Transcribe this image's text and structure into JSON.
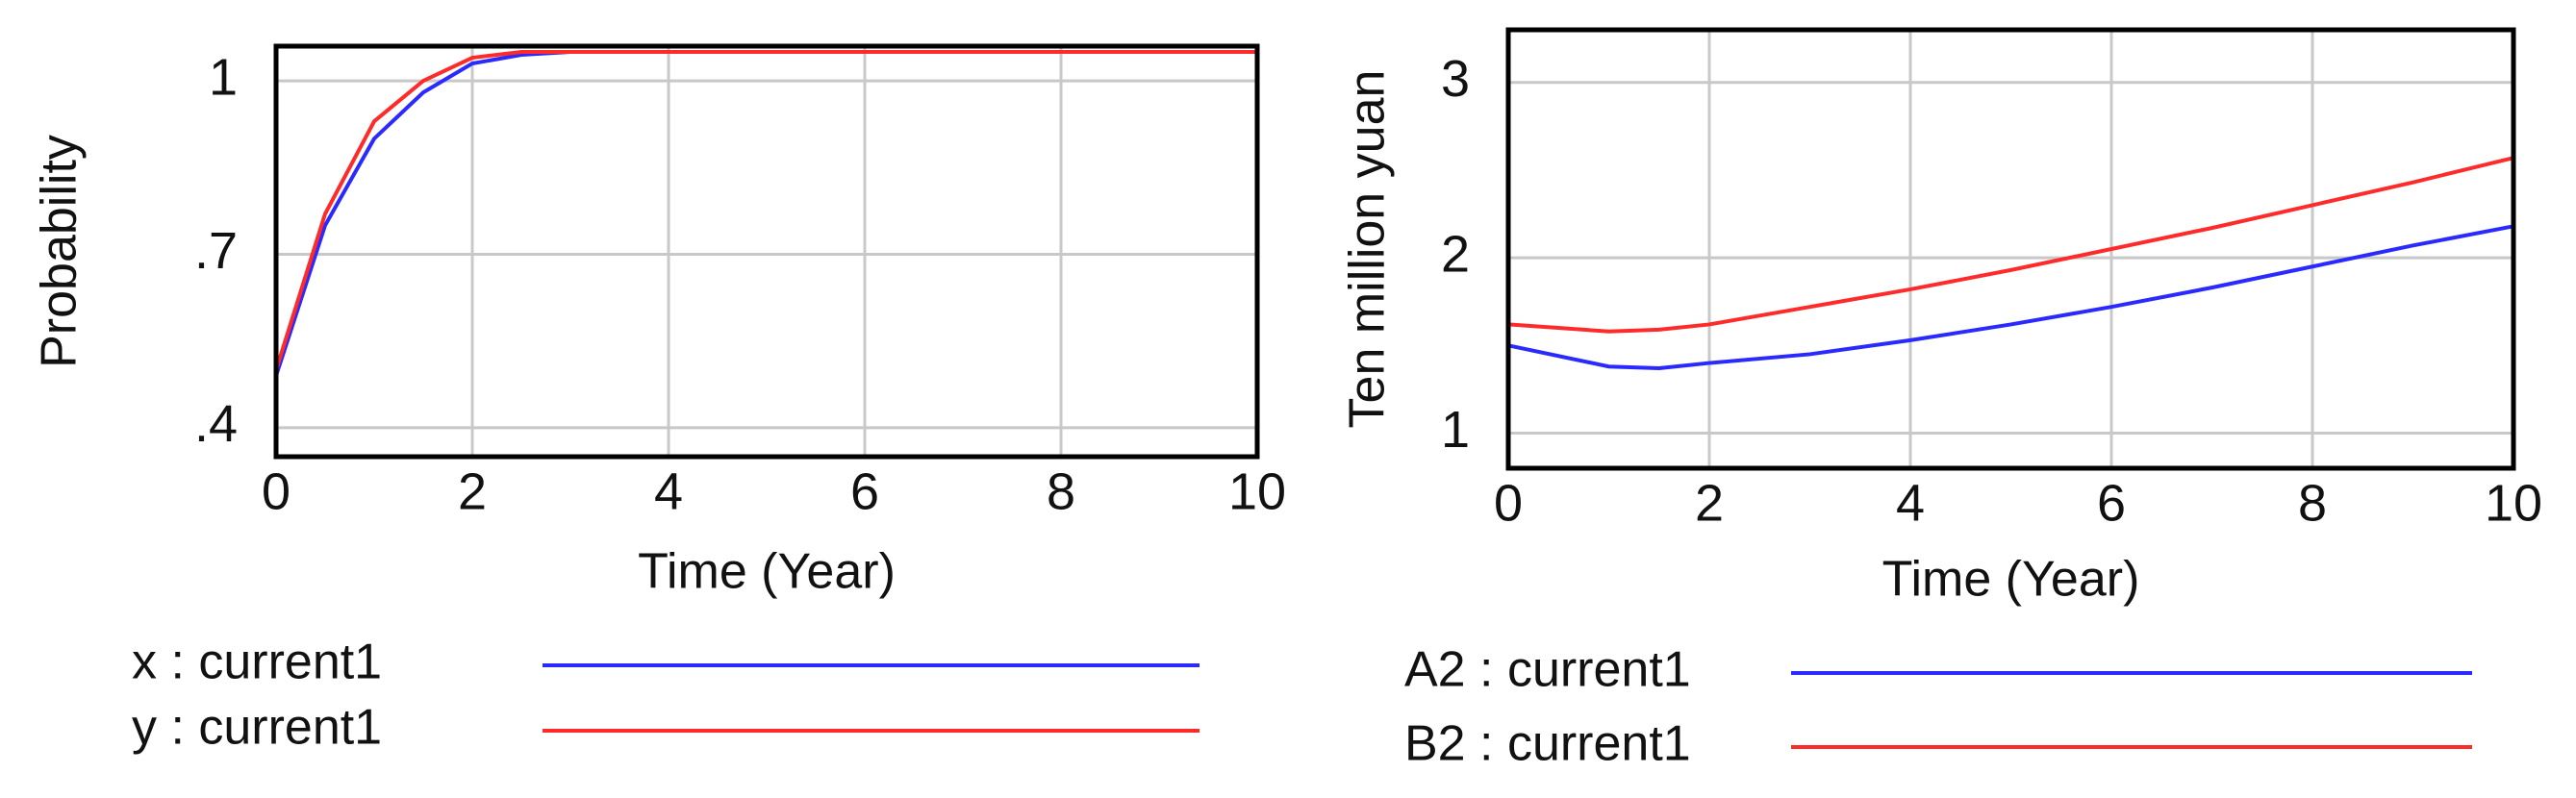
{
  "chart_data": [
    {
      "type": "line",
      "x_label": "Time (Year)",
      "y_label": "Probability",
      "x": [
        0,
        0.5,
        1,
        1.5,
        2,
        2.5,
        3,
        3.5,
        4,
        4.5,
        5,
        5.5,
        6,
        6.5,
        7,
        7.5,
        8,
        8.5,
        9,
        9.5,
        10
      ],
      "series": [
        {
          "name": "x : current1",
          "color": "#2a2aff",
          "values": [
            0.49,
            0.75,
            0.9,
            0.98,
            1.03,
            1.045,
            1.05,
            1.05,
            1.05,
            1.05,
            1.05,
            1.05,
            1.05,
            1.05,
            1.05,
            1.05,
            1.05,
            1.05,
            1.05,
            1.05,
            1.05
          ]
        },
        {
          "name": "y : current1",
          "color": "#ff2a2a",
          "values": [
            0.5,
            0.77,
            0.93,
            1.0,
            1.04,
            1.05,
            1.05,
            1.05,
            1.05,
            1.05,
            1.05,
            1.05,
            1.05,
            1.05,
            1.05,
            1.05,
            1.05,
            1.05,
            1.05,
            1.05,
            1.05
          ]
        }
      ],
      "xlim": [
        0,
        10
      ],
      "xticks": [
        0,
        2,
        4,
        6,
        8,
        10
      ],
      "ylim": [
        0.35,
        1.06
      ],
      "yticks": [
        {
          "value": 0.4,
          "label": ".4"
        },
        {
          "value": 0.7,
          "label": ".7"
        },
        1
      ],
      "grid": true
    },
    {
      "type": "line",
      "x_label": "Time (Year)",
      "y_label": "Ten million yuan",
      "x": [
        0,
        1,
        1.5,
        2,
        3,
        4,
        5,
        6,
        7,
        8,
        9,
        10
      ],
      "series": [
        {
          "name": "A2 : current1",
          "color": "#2a2aff",
          "values": [
            1.5,
            1.38,
            1.37,
            1.4,
            1.45,
            1.53,
            1.62,
            1.72,
            1.83,
            1.95,
            2.07,
            2.18
          ]
        },
        {
          "name": "B2 : current1",
          "color": "#ff2a2a",
          "values": [
            1.62,
            1.58,
            1.59,
            1.62,
            1.72,
            1.82,
            1.93,
            2.05,
            2.17,
            2.3,
            2.43,
            2.57
          ]
        }
      ],
      "xlim": [
        0,
        10
      ],
      "xticks": [
        0,
        2,
        4,
        6,
        8,
        10
      ],
      "ylim": [
        0.8,
        3.3
      ],
      "yticks": [
        1,
        2,
        3
      ],
      "grid": true
    }
  ]
}
